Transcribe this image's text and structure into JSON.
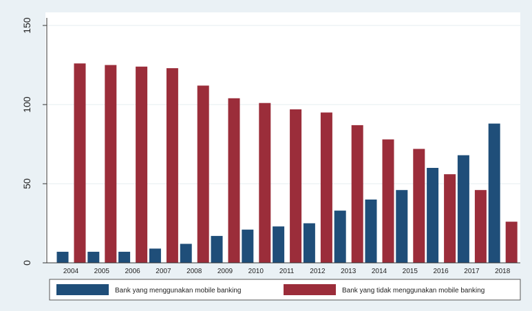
{
  "chart_data": {
    "type": "bar",
    "title": "",
    "xlabel": "",
    "ylabel": "",
    "ylim": [
      0,
      150
    ],
    "yticks": [
      0,
      50,
      100,
      150
    ],
    "grid": true,
    "legend_position": "bottom",
    "categories": [
      "2004",
      "2005",
      "2006",
      "2007",
      "2008",
      "2009",
      "2010",
      "2011",
      "2012",
      "2013",
      "2014",
      "2015",
      "2016",
      "2017",
      "2018"
    ],
    "series": [
      {
        "name": "Bank yang menggunakan mobile banking",
        "color": "#1f4e79",
        "values": [
          7,
          7,
          7,
          9,
          12,
          17,
          21,
          23,
          25,
          33,
          40,
          46,
          60,
          68,
          88
        ]
      },
      {
        "name": "Bank yang tidak menggunakan mobile banking",
        "color": "#9b2d3a",
        "values": [
          126,
          125,
          124,
          123,
          112,
          104,
          101,
          97,
          95,
          87,
          78,
          72,
          56,
          46,
          26
        ]
      }
    ]
  }
}
